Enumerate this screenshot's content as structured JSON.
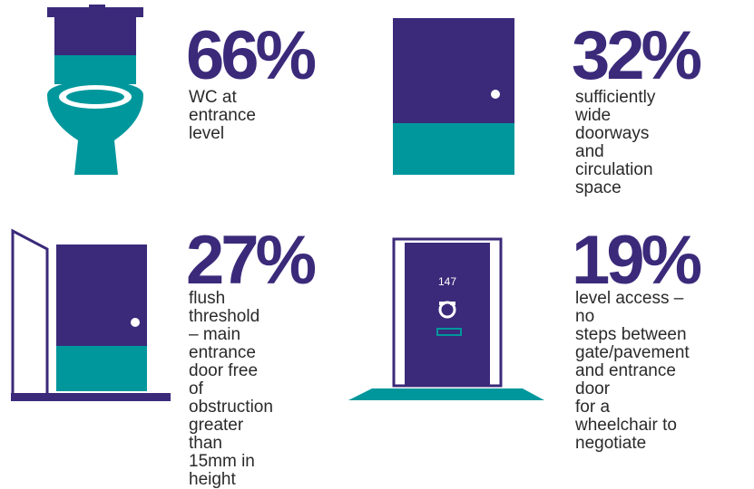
{
  "colors": {
    "purple": "#3b2a7a",
    "teal": "#00979c",
    "white": "#ffffff",
    "text": "#2a2a2a"
  },
  "stats": [
    {
      "icon": "toilet-icon",
      "percent": "66%",
      "description": "WC at\nentrance level"
    },
    {
      "icon": "door-icon",
      "percent": "32%",
      "description": "sufficiently wide\ndoorways and\ncirculation space"
    },
    {
      "icon": "open-door-icon",
      "percent": "27%",
      "description": "flush threshold\n– main entrance\ndoor free of\nobstruction\ngreater than\n15mm in height"
    },
    {
      "icon": "front-door-icon",
      "percent": "19%",
      "description": "level access – no\nsteps between\ngate/pavement\nand entrance door\nfor a wheelchair to\nnegotiate"
    }
  ],
  "front_door": {
    "house_number": "147"
  }
}
